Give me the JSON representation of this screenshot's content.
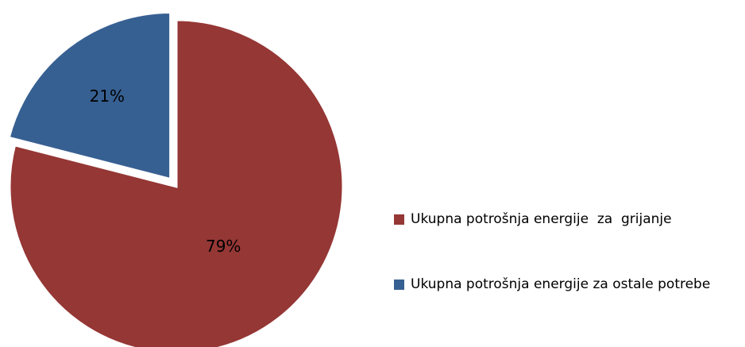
{
  "chart_data": {
    "type": "pie",
    "categories": [
      "Ukupna potrošnja energije  za  grijanje",
      "Ukupna potrošnja energije za ostale potrebe"
    ],
    "values": [
      79,
      21
    ],
    "value_labels": [
      "79%",
      "21%"
    ],
    "colors": [
      "#953735",
      "#376092"
    ],
    "exploded": [
      false,
      true
    ],
    "legend": "right"
  }
}
